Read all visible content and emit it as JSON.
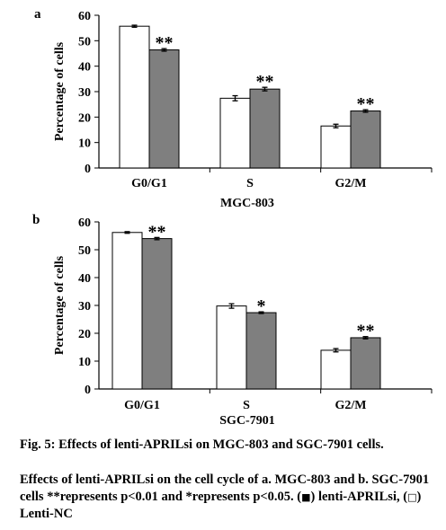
{
  "chart_data": [
    {
      "type": "bar",
      "panel_label": "a",
      "xlabel": "MGC-803",
      "ylabel": "Percentage of cells",
      "ylim": [
        0,
        60
      ],
      "yticks": [
        0,
        10,
        20,
        30,
        40,
        50,
        60
      ],
      "categories": [
        "G0/G1",
        "S",
        "G2/M"
      ],
      "series": [
        {
          "key": "nc",
          "fill": "#ffffff",
          "values": [
            55.7,
            27.4,
            16.5
          ],
          "errors": [
            0.4,
            1.0,
            0.7
          ]
        },
        {
          "key": "si",
          "fill": "#7f7f7f",
          "values": [
            46.4,
            31.0,
            22.4
          ],
          "errors": [
            0.5,
            0.7,
            0.5
          ]
        }
      ],
      "annotations": [
        {
          "category": 0,
          "series": 1,
          "text": "**"
        },
        {
          "category": 1,
          "series": 1,
          "text": "**"
        },
        {
          "category": 2,
          "series": 1,
          "text": "**"
        }
      ]
    },
    {
      "type": "bar",
      "panel_label": "b",
      "xlabel": "SGC-7901",
      "ylabel": "Percentage of cells",
      "ylim": [
        0,
        60
      ],
      "yticks": [
        0,
        10,
        20,
        30,
        40,
        50,
        60
      ],
      "categories": [
        "G0/G1",
        "S",
        "G2/M"
      ],
      "series": [
        {
          "key": "nc",
          "fill": "#ffffff",
          "values": [
            56.2,
            29.8,
            13.9
          ],
          "errors": [
            0.3,
            0.8,
            0.6
          ]
        },
        {
          "key": "si",
          "fill": "#7f7f7f",
          "values": [
            54.0,
            27.4,
            18.4
          ],
          "errors": [
            0.4,
            0.3,
            0.4
          ]
        }
      ],
      "annotations": [
        {
          "category": 0,
          "series": 1,
          "text": "**"
        },
        {
          "category": 1,
          "series": 1,
          "text": "*"
        },
        {
          "category": 2,
          "series": 1,
          "text": "**"
        }
      ]
    }
  ],
  "caption": {
    "title": "Fig. 5: Effects of lenti-APRILsi on MGC-803 and SGC-7901 cells.",
    "body_main": "Effects of lenti-APRILsi on the cell cycle of a. MGC-803 and b. SGC-7901 cells **represents p<0.01 and *represents p<0.05. (",
    "symbol_filled": "■",
    "body_mid": ") lenti-APRILsi, (",
    "symbol_open": "□",
    "body_end": ") Lenti-NC"
  }
}
